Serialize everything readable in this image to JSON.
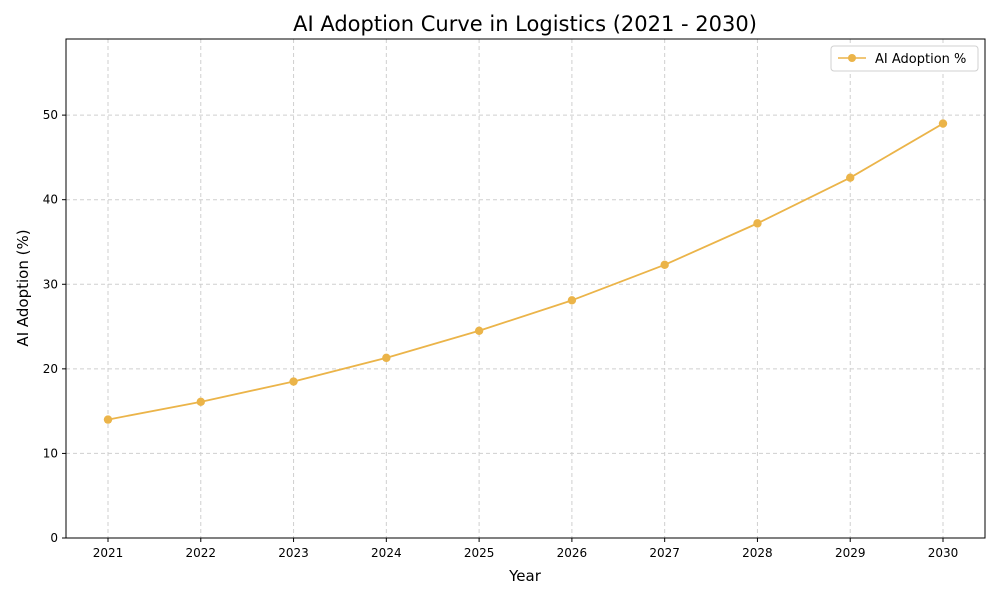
{
  "chart_data": {
    "type": "line",
    "title": "AI Adoption Curve in Logistics (2021 - 2030)",
    "xlabel": "Year",
    "ylabel": "AI Adoption (%)",
    "x": [
      "2021",
      "2022",
      "2023",
      "2024",
      "2025",
      "2026",
      "2027",
      "2028",
      "2029",
      "2030"
    ],
    "ylim": [
      0,
      59
    ],
    "yticks": [
      0,
      10,
      20,
      30,
      40,
      50
    ],
    "grid": true,
    "legend_position": "top-right",
    "series": [
      {
        "name": "AI Adoption %",
        "color": "#EBB449",
        "marker": "circle",
        "values": [
          14.0,
          16.1,
          18.5,
          21.3,
          24.5,
          28.1,
          32.3,
          37.2,
          42.6,
          49.0
        ]
      }
    ]
  }
}
